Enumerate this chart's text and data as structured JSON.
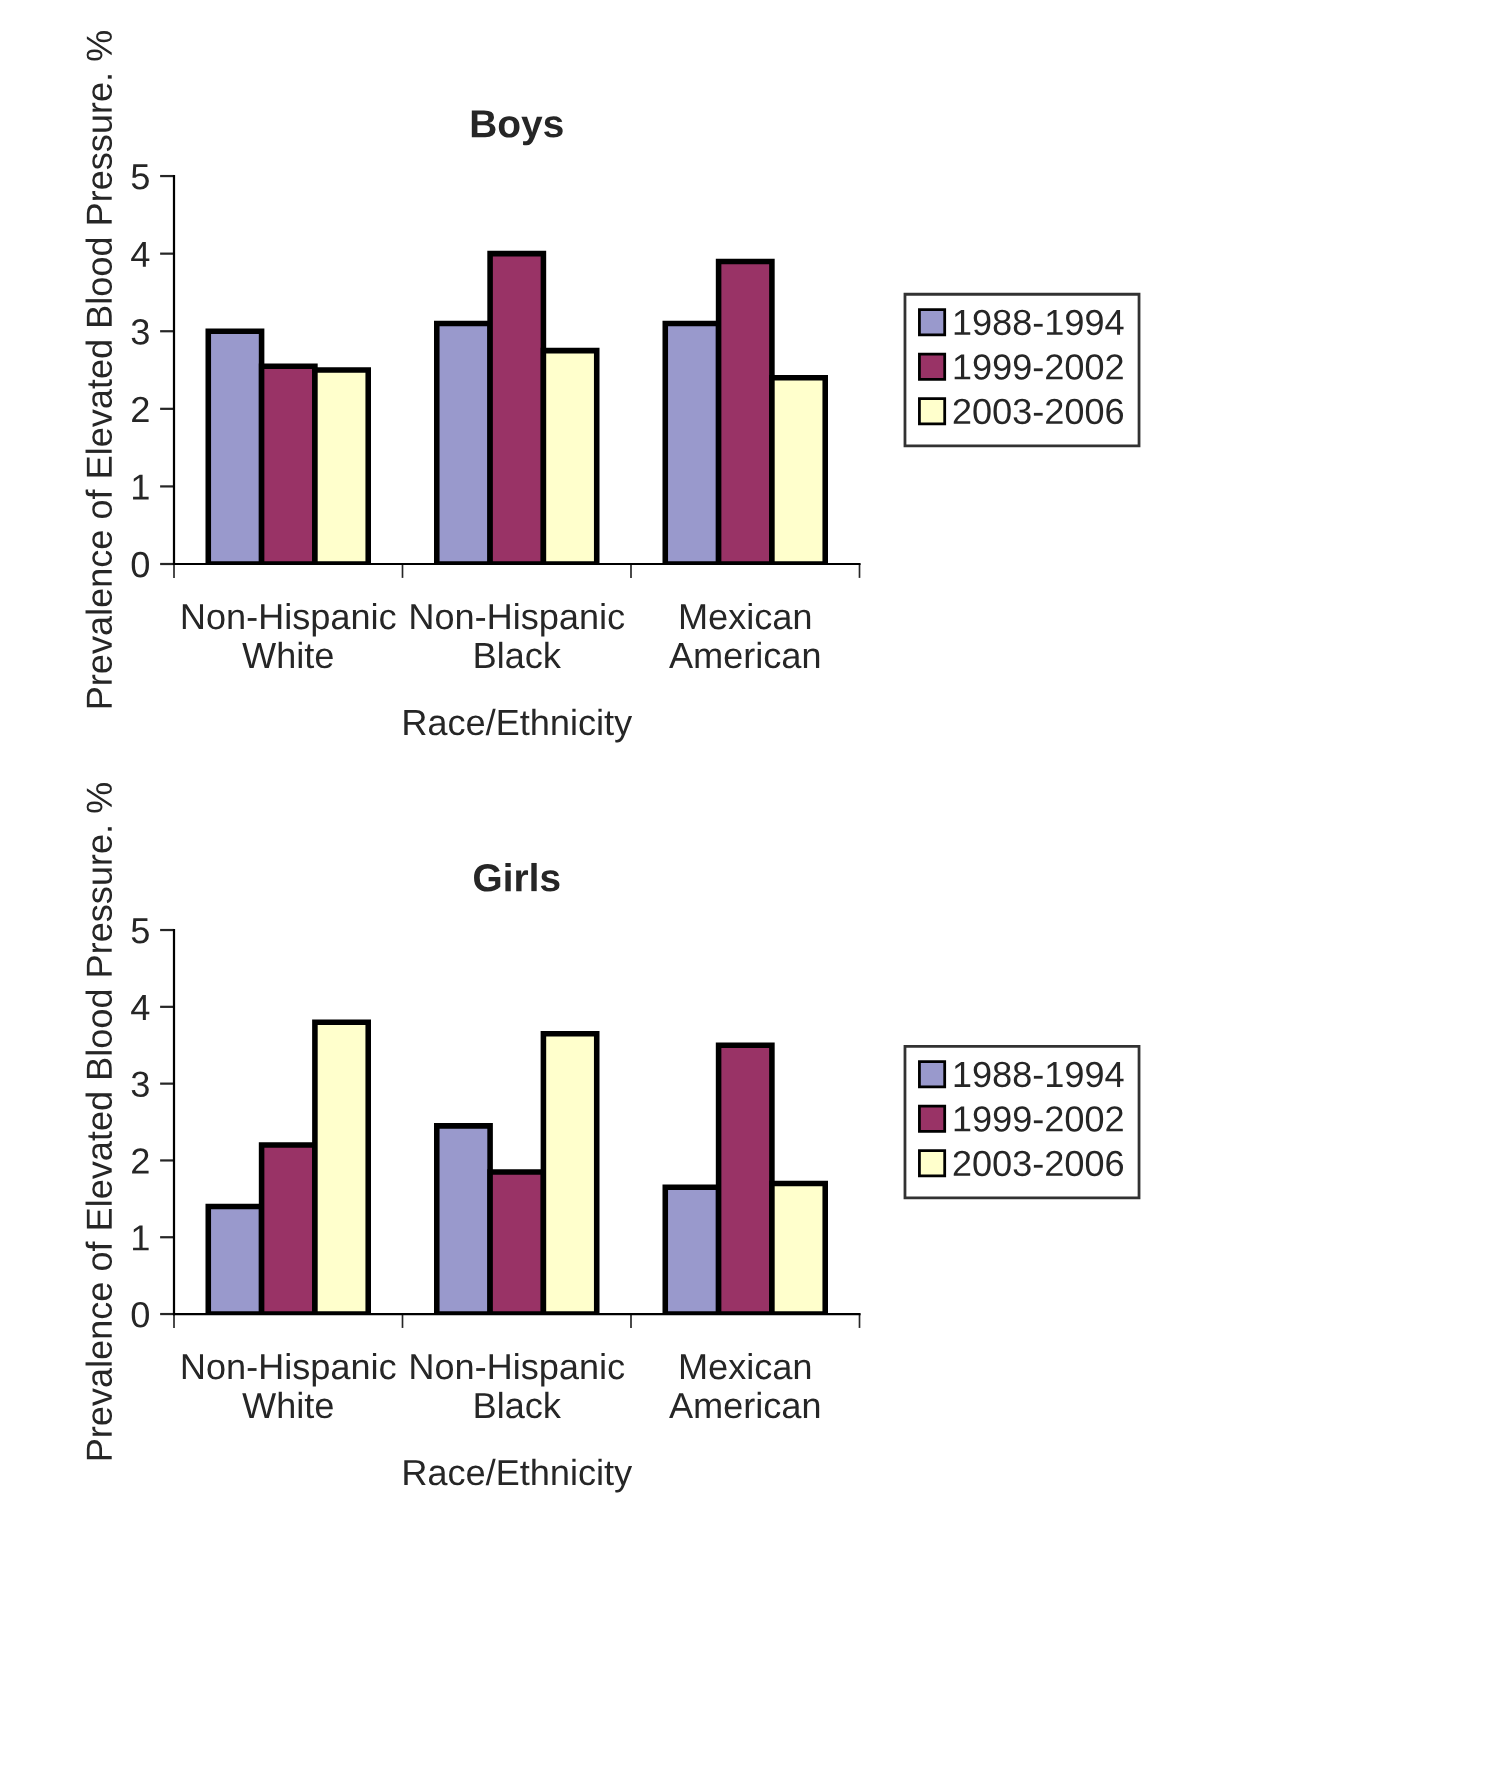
{
  "chart_data": [
    {
      "type": "bar",
      "title": "Boys",
      "xlabel": "Race/Ethnicity",
      "ylabel": "Prevalence of Elevated Blood Pressure. %",
      "categories": [
        "Non-Hispanic\nWhite",
        "Non-Hispanic\nBlack",
        "Mexican\nAmerican"
      ],
      "ylim": [
        0,
        5
      ],
      "yticks": [
        0,
        1,
        2,
        3,
        4,
        5
      ],
      "legend": "right",
      "series": [
        {
          "name": "1988-1994",
          "color": "#9999cc",
          "values": [
            3.0,
            3.1,
            3.1
          ]
        },
        {
          "name": "1999-2002",
          "color": "#993366",
          "values": [
            2.55,
            4.0,
            3.9
          ]
        },
        {
          "name": "2003-2006",
          "color": "#ffffcc",
          "values": [
            2.5,
            2.75,
            2.4
          ]
        }
      ]
    },
    {
      "type": "bar",
      "title": "Girls",
      "xlabel": "Race/Ethnicity",
      "ylabel": "Prevalence of Elevated Blood Pressure. %",
      "categories": [
        "Non-Hispanic\nWhite",
        "Non-Hispanic\nBlack",
        "Mexican\nAmerican"
      ],
      "ylim": [
        0,
        5
      ],
      "yticks": [
        0,
        1,
        2,
        3,
        4,
        5
      ],
      "legend": "right",
      "series": [
        {
          "name": "1988-1994",
          "color": "#9999cc",
          "values": [
            1.4,
            2.45,
            1.65
          ]
        },
        {
          "name": "1999-2002",
          "color": "#993366",
          "values": [
            2.2,
            1.85,
            3.5
          ]
        },
        {
          "name": "2003-2006",
          "color": "#ffffcc",
          "values": [
            3.8,
            3.65,
            1.7
          ]
        }
      ]
    }
  ]
}
